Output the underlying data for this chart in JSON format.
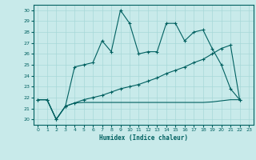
{
  "title": "",
  "xlabel": "Humidex (Indice chaleur)",
  "background_color": "#c8eaea",
  "line_color": "#006060",
  "grid_color": "#a8d8d8",
  "xlim": [
    -0.5,
    23.5
  ],
  "ylim": [
    19.5,
    30.5
  ],
  "xticks": [
    0,
    1,
    2,
    3,
    4,
    5,
    6,
    7,
    8,
    9,
    10,
    11,
    12,
    13,
    14,
    15,
    16,
    17,
    18,
    19,
    20,
    21,
    22,
    23
  ],
  "yticks": [
    20,
    21,
    22,
    23,
    24,
    25,
    26,
    27,
    28,
    29,
    30
  ],
  "series1_x": [
    0,
    1,
    2,
    3,
    4,
    5,
    6,
    7,
    8,
    9,
    10,
    11,
    12,
    13,
    14,
    15,
    16,
    17,
    18,
    19,
    20,
    21,
    22
  ],
  "series1_y": [
    21.8,
    21.8,
    20.0,
    21.2,
    24.8,
    25.0,
    25.2,
    27.2,
    26.2,
    30.0,
    28.8,
    26.0,
    26.2,
    26.2,
    28.8,
    28.8,
    27.2,
    28.0,
    28.2,
    26.5,
    25.0,
    22.8,
    21.8
  ],
  "series2_x": [
    0,
    1,
    2,
    3,
    4,
    5,
    6,
    7,
    8,
    9,
    10,
    11,
    12,
    13,
    14,
    15,
    16,
    17,
    18,
    19,
    20,
    21,
    22
  ],
  "series2_y": [
    21.8,
    21.8,
    20.0,
    21.2,
    21.5,
    21.8,
    22.0,
    22.2,
    22.5,
    22.8,
    23.0,
    23.2,
    23.5,
    23.8,
    24.2,
    24.5,
    24.8,
    25.2,
    25.5,
    26.0,
    26.5,
    26.8,
    21.8
  ],
  "series3_x": [
    0,
    1,
    2,
    3,
    4,
    5,
    6,
    7,
    8,
    9,
    10,
    11,
    12,
    13,
    14,
    15,
    16,
    17,
    18,
    19,
    20,
    21,
    22
  ],
  "series3_y": [
    21.8,
    21.8,
    20.0,
    21.2,
    21.5,
    21.55,
    21.55,
    21.55,
    21.55,
    21.55,
    21.55,
    21.55,
    21.55,
    21.55,
    21.55,
    21.55,
    21.55,
    21.55,
    21.55,
    21.6,
    21.7,
    21.8,
    21.8
  ]
}
